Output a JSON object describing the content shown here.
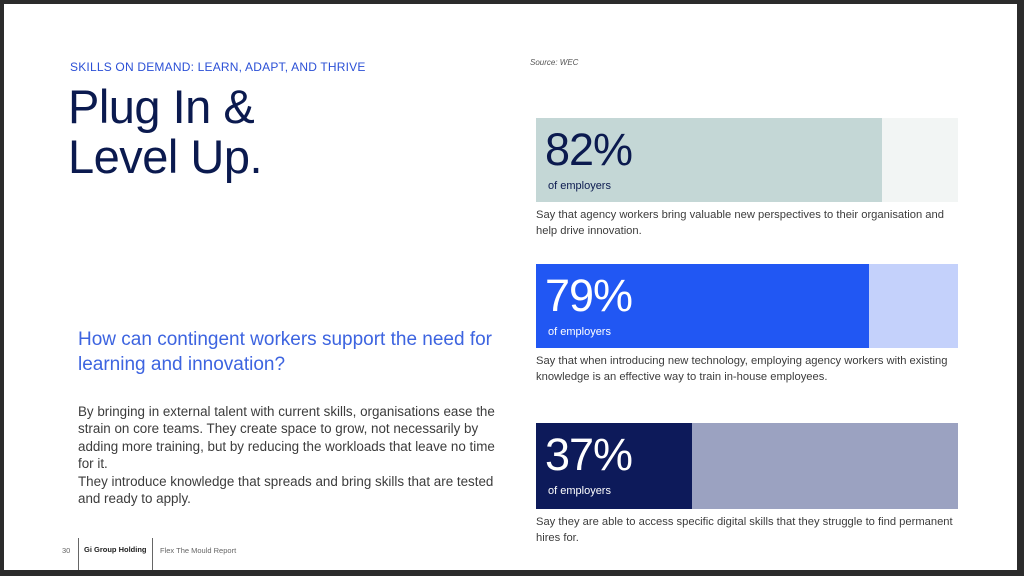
{
  "header": {
    "eyebrow": "SKILLS ON DEMAND: LEARN, ADAPT, AND THRIVE",
    "title_line1": "Plug In &",
    "title_line2": "Level Up.",
    "source": "Source: WEC"
  },
  "intro": {
    "question": "How can contingent workers support the need for learning and innovation?",
    "paragraph1": "By bringing in external talent with current skills, organisations ease the strain on core teams. They create space to grow, not necessarily by adding more training, but by reducing the workloads that leave no time for it.",
    "paragraph2": "They introduce knowledge that spreads and bring skills that are tested and ready to apply."
  },
  "stats": [
    {
      "percent_label": "82%",
      "value": 0.82,
      "sub": "of employers",
      "description": "Say that agency workers bring valuable new perspectives to their organisation and help drive innovation.",
      "fill_color": "#c4d7d6",
      "track_color": "#f2f5f4"
    },
    {
      "percent_label": "79%",
      "value": 0.79,
      "sub": "of employers",
      "description": "Say that when introducing new technology, employing agency workers with existing knowledge is an effective way to train in-house employees.",
      "fill_color": "#2157f3",
      "track_color": "#c4d1fb"
    },
    {
      "percent_label": "37%",
      "value": 0.37,
      "sub": "of employers",
      "description": "Say they are able to access specific digital skills that they struggle to find permanent hires for.",
      "fill_color": "#0d1a5a",
      "track_color": "#9ba2c1"
    }
  ],
  "footer": {
    "page_number": "30",
    "brand": "Gi Group Holding",
    "report": "Flex The Mould Report"
  }
}
